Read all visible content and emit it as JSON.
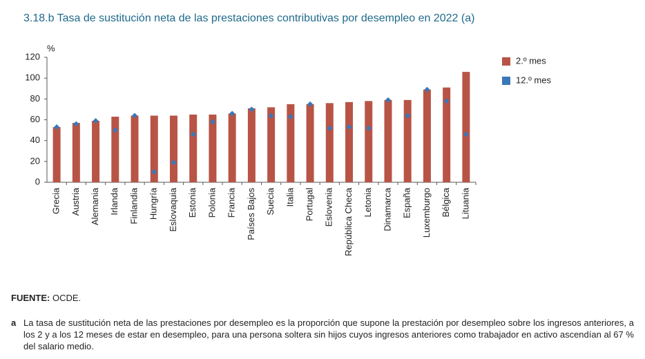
{
  "chart_data": {
    "type": "bar",
    "title": "3.18.b  Tasa de sustitución neta de las prestaciones contributivas por desempleo en 2022 (a)",
    "y_unit": "%",
    "categories": [
      "Grecia",
      "Austria",
      "Alemania",
      "Irlanda",
      "Finlandia",
      "Hungría",
      "Eslovaquia",
      "Estonia",
      "Polonia",
      "Francia",
      "Países Bajos",
      "Suecia",
      "Italia",
      "Portugal",
      "Eslovenia",
      "República Checa",
      "Letonia",
      "Dinamarca",
      "España",
      "Luxemburgo",
      "Bélgica",
      "Lituania"
    ],
    "series": [
      {
        "name": "2.º mes",
        "type": "bar",
        "color": "#b85446",
        "values": [
          53,
          57,
          59,
          63,
          64,
          64,
          64,
          65,
          65,
          66,
          71,
          72,
          75,
          75,
          76,
          77,
          78,
          79,
          79,
          89,
          91,
          106
        ]
      },
      {
        "name": "12.º mes",
        "type": "scatter",
        "color": "#3a78b8",
        "values": [
          53,
          56,
          59,
          50,
          64,
          10,
          19,
          46,
          58,
          66,
          70,
          64,
          63,
          75,
          52,
          53,
          52,
          79,
          64,
          89,
          78,
          46
        ]
      }
    ],
    "ylim": [
      0,
      120
    ],
    "yticks": [
      0,
      20,
      40,
      60,
      80,
      100,
      120
    ],
    "grid": false,
    "legend": "right"
  },
  "source": {
    "label": "FUENTE:",
    "text": "OCDE."
  },
  "note": {
    "mark": "a",
    "text": "La tasa de sustitución neta de las prestaciones por desempleo es la proporción que supone la prestación por desempleo sobre los ingresos anteriores, a los 2 y a los 12 meses de estar en desempleo, para una persona soltera sin hijos cuyos ingresos anteriores como trabajador en activo ascendían al 67 % del salario medio."
  }
}
